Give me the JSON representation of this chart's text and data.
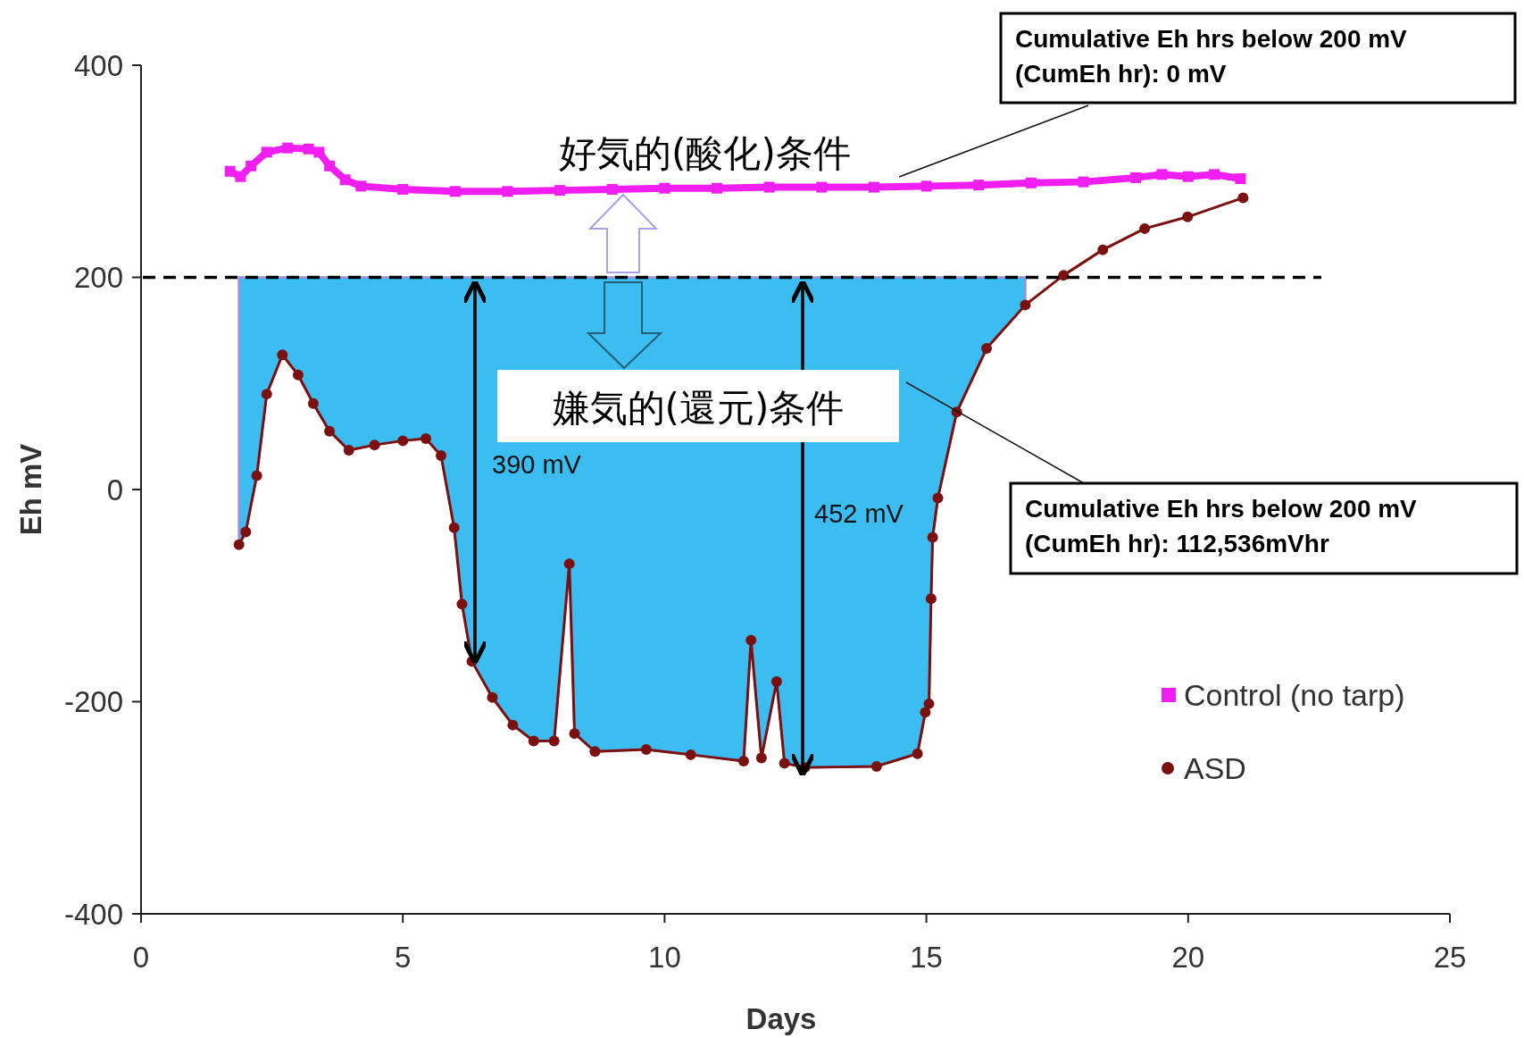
{
  "chart_data": {
    "type": "line",
    "xlabel": "Days",
    "ylabel": "Eh mV",
    "xlim": [
      0,
      25
    ],
    "xticks": [
      0,
      5,
      10,
      15,
      20,
      25
    ],
    "ylim": [
      -400,
      400
    ],
    "yticks": [
      -400,
      -200,
      0,
      200,
      400
    ],
    "grid": false,
    "legend": "right",
    "series": [
      {
        "name": "Control (no tarp)",
        "marker": "square",
        "color": "#f01ef0",
        "x": [
          1.7,
          1.9,
          2.1,
          2.4,
          2.8,
          3.2,
          3.4,
          3.6,
          3.9,
          4.2,
          5,
          6,
          7,
          8,
          9,
          10,
          11,
          12,
          13,
          14,
          15,
          16,
          17,
          18,
          19,
          19.5,
          20,
          20.5,
          21
        ],
        "values": [
          300,
          295,
          305,
          318,
          322,
          321,
          318,
          305,
          292,
          286,
          283,
          281,
          281,
          282,
          283,
          284,
          284,
          285,
          285,
          285,
          286,
          287,
          289,
          290,
          294,
          297,
          295,
          297,
          293
        ]
      },
      {
        "name": "ASD",
        "upper": [
          200,
          200,
          200,
          200,
          200,
          200,
          200,
          200,
          200,
          200,
          200,
          200,
          200,
          200,
          200,
          200,
          200,
          200,
          200,
          200,
          200,
          200,
          200,
          200,
          200,
          200,
          200,
          200,
          200,
          200,
          200,
          200,
          200,
          200,
          200,
          200,
          200,
          200,
          200,
          200,
          200,
          null,
          null,
          null,
          null,
          null
        ],
        "lower": [
          -52,
          -40,
          13,
          90,
          127,
          108,
          81,
          55,
          37,
          42,
          46,
          48,
          32,
          -36,
          -108,
          -162,
          -196,
          -222,
          -237,
          -237,
          -70,
          -230,
          -247,
          -245,
          -250,
          -256,
          -142,
          -253,
          -181,
          -258,
          -262,
          -261,
          -249,
          -210,
          -202,
          -103,
          -45,
          -8,
          73,
          133,
          174,
          null,
          null,
          null,
          null,
          null
        ],
        "marker": "circle",
        "color": "#7b1010",
        "x": [
          1.87,
          2.0,
          2.21,
          2.4,
          2.7,
          3.0,
          3.29,
          3.6,
          3.97,
          4.46,
          5.0,
          5.44,
          5.73,
          5.98,
          6.13,
          6.32,
          6.71,
          7.1,
          7.5,
          7.89,
          8.18,
          8.28,
          8.67,
          9.65,
          10.5,
          11.51,
          11.65,
          11.85,
          12.14,
          12.29,
          12.68,
          14.05,
          14.83,
          14.98,
          15.05,
          15.09,
          15.12,
          15.22,
          15.58,
          16.15,
          16.89,
          17.62,
          18.37,
          19.17,
          19.99,
          21.05
        ],
        "values": [
          -52,
          -40,
          13,
          90,
          127,
          108,
          81,
          55,
          37,
          42,
          46,
          48,
          32,
          -36,
          -108,
          -162,
          -196,
          -222,
          -237,
          -237,
          -70,
          -230,
          -247,
          -245,
          -250,
          -256,
          -142,
          -253,
          -181,
          -258,
          -262,
          -261,
          -249,
          -210,
          -202,
          -103,
          -45,
          -8,
          73,
          133,
          174,
          202,
          226,
          246,
          257,
          275
        ]
      }
    ],
    "ref_lines": [
      {
        "axis": "y",
        "value": 200,
        "color": "#000000",
        "line_style": "dashed"
      }
    ],
    "annotations": [
      "390 mV",
      "452 mV",
      "好気的(酸化)条件",
      "嫌気的(還元)条件",
      "Cumulative Eh hrs below 200 mV\n(CumEh hr): 0 mV",
      "Cumulative Eh hrs below 200 mV\n(CumEh hr): 112,536mVhr"
    ]
  }
}
